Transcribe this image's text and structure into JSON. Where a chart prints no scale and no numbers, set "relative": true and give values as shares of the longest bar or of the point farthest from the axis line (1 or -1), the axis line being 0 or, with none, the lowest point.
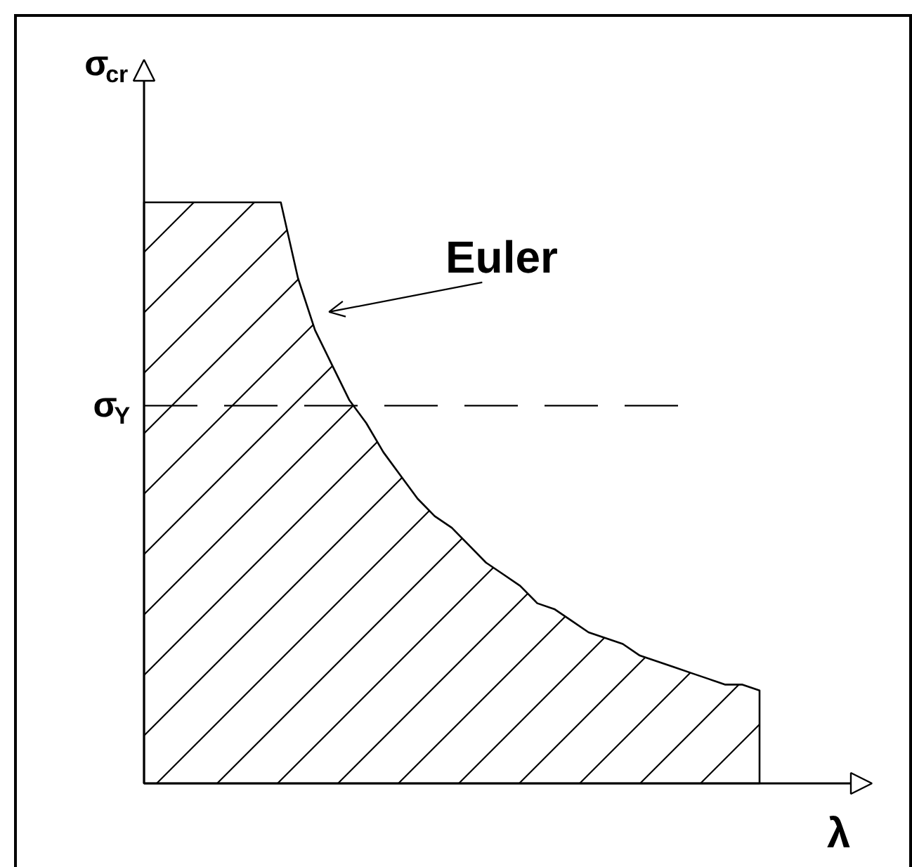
{
  "chart_data": {
    "type": "area",
    "relative": true,
    "xlabel": "λ",
    "ylabel": "σ$_{cr}$",
    "annotations": [
      "Euler"
    ],
    "categories": [
      null,
      null,
      null,
      null,
      null,
      null,
      null,
      null,
      null,
      null,
      null,
      null,
      null,
      null,
      null,
      null,
      null,
      null,
      null,
      null,
      null,
      null,
      null,
      null,
      null,
      null,
      null,
      null,
      null,
      null,
      null,
      null,
      null,
      null,
      null,
      null,
      null
    ],
    "series": [
      {
        "color": "#000000",
        "values": [
          1,
          1,
          1,
          1,
          1,
          1,
          1,
          1,
          1,
          0.87,
          0.78,
          0.72,
          0.66,
          0.62,
          0.57,
          0.53,
          0.49,
          0.46,
          0.44,
          0.41,
          0.38,
          0.36,
          0.34,
          0.31,
          0.3,
          0.28,
          0.26,
          0.25,
          0.24,
          0.22,
          0.21,
          0.2,
          0.19,
          0.18,
          0.17,
          0.17,
          0.16
        ]
      }
    ],
    "ref_lines": [
      {
        "axis": "y",
        "value": 0.65,
        "label": "σ$_{Y}$",
        "color": "#000000",
        "line_style": "dashed"
      }
    ]
  }
}
